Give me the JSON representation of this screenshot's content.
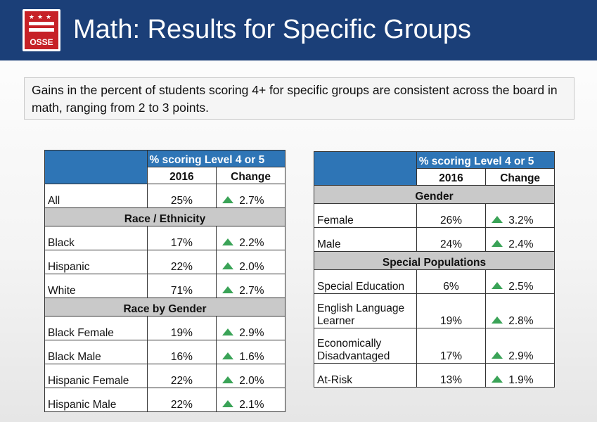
{
  "logo": {
    "text": "OSSE",
    "stars": "★★★"
  },
  "title": "Math: Results for Specific Groups",
  "callout": "Gains in the percent of students scoring 4+ for specific groups are consistent across the board in math, ranging from 2 to 3 points.",
  "colors": {
    "header": "#1b3f78",
    "table_header": "#2e75b6",
    "section": "#c9c9c9",
    "up_arrow": "#3aa357"
  },
  "table_left": {
    "header": "% scoring Level 4 or 5",
    "col_year": "2016",
    "col_change": "Change",
    "sections": [
      {
        "title": "",
        "rows": [
          {
            "label": "All",
            "value": "25%",
            "change": "2.7%"
          }
        ]
      },
      {
        "title": "Race / Ethnicity",
        "rows": [
          {
            "label": "Black",
            "value": "17%",
            "change": "2.2%"
          },
          {
            "label": "Hispanic",
            "value": "22%",
            "change": "2.0%"
          },
          {
            "label": "White",
            "value": "71%",
            "change": "2.7%"
          }
        ]
      },
      {
        "title": "Race by Gender",
        "rows": [
          {
            "label": "Black Female",
            "value": "19%",
            "change": "2.9%"
          },
          {
            "label": "Black Male",
            "value": "16%",
            "change": "1.6%"
          },
          {
            "label": "Hispanic Female",
            "value": "22%",
            "change": "2.0%"
          },
          {
            "label": "Hispanic Male",
            "value": "22%",
            "change": "2.1%"
          }
        ]
      }
    ]
  },
  "table_right": {
    "header": "% scoring Level 4 or 5",
    "col_year": "2016",
    "col_change": "Change",
    "sections": [
      {
        "title": "Gender",
        "rows": [
          {
            "label": "Female",
            "value": "26%",
            "change": "3.2%"
          },
          {
            "label": "Male",
            "value": "24%",
            "change": "2.4%"
          }
        ]
      },
      {
        "title": "Special Populations",
        "rows": [
          {
            "label": "Special Education",
            "value": "6%",
            "change": "2.5%"
          },
          {
            "label": "English Language Learner",
            "value": "19%",
            "change": "2.8%"
          },
          {
            "label": "Economically Disadvantaged",
            "value": "17%",
            "change": "2.9%"
          },
          {
            "label": "At-Risk",
            "value": "13%",
            "change": "1.9%"
          }
        ]
      }
    ]
  }
}
